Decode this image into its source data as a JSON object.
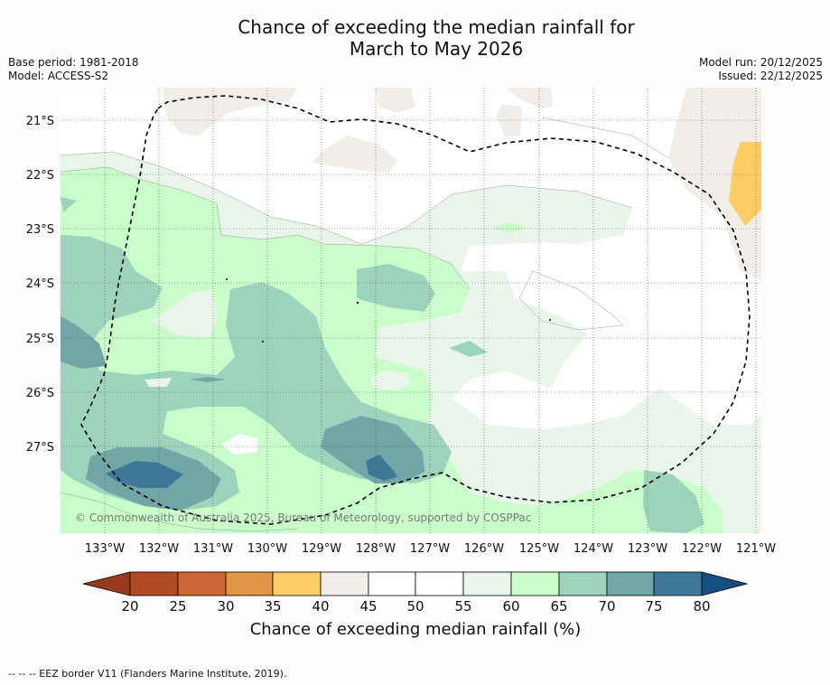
{
  "title": {
    "line1": "Chance of exceeding the median rainfall for",
    "line2": "March to May 2026"
  },
  "meta_left": {
    "base_period": "Base period: 1981-2018",
    "model": "Model: ACCESS-S2"
  },
  "meta_right": {
    "model_run": "Model run: 20/12/2025",
    "issued": "Issued: 22/12/2025"
  },
  "map": {
    "lon_labels": [
      "133°W",
      "132°W",
      "131°W",
      "130°W",
      "129°W",
      "128°W",
      "127°W",
      "126°W",
      "125°W",
      "124°W",
      "123°W",
      "122°W",
      "121°W"
    ],
    "lat_labels": [
      "21°S",
      "22°S",
      "23°S",
      "24°S",
      "25°S",
      "26°S",
      "27°S"
    ],
    "copyright": "© Commonwealth of Australia 2025, Bureau of Meteorology, supported by COSPPac",
    "region_border": "EEZ border (dashed line)"
  },
  "colorbar": {
    "ticks": [
      "20",
      "25",
      "30",
      "35",
      "40",
      "45",
      "50",
      "55",
      "60",
      "65",
      "70",
      "75",
      "80"
    ],
    "label": "Chance of exceeding median rainfall (%)",
    "colors": [
      "#9c3a1e",
      "#b24a25",
      "#cd6633",
      "#e19544",
      "#fdcd65",
      "#f1eeea",
      "#ffffff",
      "#ffffff",
      "#e9f5ea",
      "#c9fdc9",
      "#9dd3bc",
      "#70a6a6",
      "#3f7897",
      "#154f82"
    ]
  },
  "footer": {
    "note": "--  --  -- EEZ border V11 (Flanders Marine Institute, 2019)."
  }
}
